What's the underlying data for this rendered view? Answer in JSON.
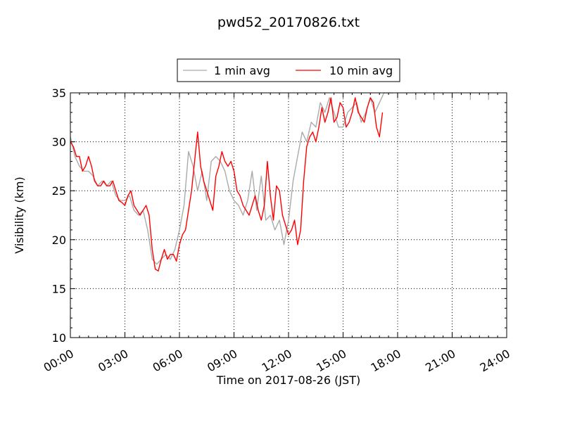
{
  "chart_data": {
    "type": "line",
    "title": "pwd52_20170826.txt",
    "xlabel": "Time on 2017-08-26 (JST)",
    "ylabel": "Visibility (km)",
    "xlim": [
      "00:00",
      "24:00"
    ],
    "ylim": [
      10,
      35
    ],
    "x_ticks": [
      "00:00",
      "03:00",
      "06:00",
      "09:00",
      "12:00",
      "15:00",
      "18:00",
      "21:00",
      "24:00"
    ],
    "y_ticks": [
      "10",
      "15",
      "20",
      "25",
      "30",
      "35"
    ],
    "grid": true,
    "legend_position": "top-center",
    "series": [
      {
        "name": "1 min avg",
        "color": "#aaaaaa",
        "points": [
          [
            "00:00",
            30.5
          ],
          [
            "00:15",
            28.5
          ],
          [
            "00:30",
            27.5
          ],
          [
            "00:45",
            27.0
          ],
          [
            "01:00",
            27.0
          ],
          [
            "01:15",
            26.5
          ],
          [
            "01:30",
            25.5
          ],
          [
            "01:45",
            26.0
          ],
          [
            "02:00",
            25.5
          ],
          [
            "02:15",
            26.0
          ],
          [
            "02:30",
            24.5
          ],
          [
            "02:45",
            24.0
          ],
          [
            "03:00",
            24.0
          ],
          [
            "03:15",
            24.5
          ],
          [
            "03:30",
            23.0
          ],
          [
            "03:45",
            22.5
          ],
          [
            "04:00",
            23.0
          ],
          [
            "04:15",
            21.0
          ],
          [
            "04:30",
            18.0
          ],
          [
            "04:45",
            17.5
          ],
          [
            "05:00",
            18.0
          ],
          [
            "05:15",
            18.5
          ],
          [
            "05:30",
            18.0
          ],
          [
            "05:45",
            19.0
          ],
          [
            "06:00",
            21.0
          ],
          [
            "06:15",
            23.5
          ],
          [
            "06:30",
            29.0
          ],
          [
            "06:45",
            27.5
          ],
          [
            "07:00",
            25.0
          ],
          [
            "07:15",
            27.0
          ],
          [
            "07:30",
            24.0
          ],
          [
            "07:45",
            28.0
          ],
          [
            "08:00",
            28.5
          ],
          [
            "08:15",
            28.0
          ],
          [
            "08:30",
            27.0
          ],
          [
            "08:45",
            25.0
          ],
          [
            "09:00",
            24.0
          ],
          [
            "09:15",
            23.5
          ],
          [
            "09:30",
            22.5
          ],
          [
            "09:45",
            24.0
          ],
          [
            "10:00",
            27.0
          ],
          [
            "10:15",
            23.0
          ],
          [
            "10:30",
            26.5
          ],
          [
            "10:45",
            22.0
          ],
          [
            "11:00",
            22.5
          ],
          [
            "11:15",
            21.0
          ],
          [
            "11:30",
            22.0
          ],
          [
            "11:45",
            19.5
          ],
          [
            "12:00",
            22.0
          ],
          [
            "12:15",
            26.0
          ],
          [
            "12:30",
            28.5
          ],
          [
            "12:45",
            31.0
          ],
          [
            "13:00",
            30.0
          ],
          [
            "13:15",
            32.0
          ],
          [
            "13:30",
            31.5
          ],
          [
            "13:45",
            34.0
          ],
          [
            "14:00",
            33.0
          ],
          [
            "14:15",
            34.5
          ],
          [
            "14:30",
            33.0
          ],
          [
            "14:45",
            31.5
          ],
          [
            "15:00",
            31.5
          ],
          [
            "15:15",
            33.0
          ],
          [
            "15:30",
            33.5
          ],
          [
            "15:45",
            34.0
          ],
          [
            "16:00",
            32.0
          ],
          [
            "16:15",
            33.0
          ],
          [
            "16:30",
            34.5
          ],
          [
            "16:45",
            33.0
          ],
          [
            "17:00",
            34.0
          ],
          [
            "17:15",
            35.0
          ],
          [
            "17:30",
            35.0
          ],
          [
            "17:45",
            35.0
          ]
        ]
      },
      {
        "name": "10 min avg",
        "color": "#ff0000",
        "points": [
          [
            "00:00",
            30.0
          ],
          [
            "00:10",
            29.5
          ],
          [
            "00:20",
            28.5
          ],
          [
            "00:30",
            28.5
          ],
          [
            "00:40",
            27.0
          ],
          [
            "00:50",
            27.5
          ],
          [
            "01:00",
            28.5
          ],
          [
            "01:10",
            27.5
          ],
          [
            "01:20",
            26.0
          ],
          [
            "01:30",
            25.5
          ],
          [
            "01:40",
            25.5
          ],
          [
            "01:50",
            26.0
          ],
          [
            "02:00",
            25.5
          ],
          [
            "02:10",
            25.5
          ],
          [
            "02:20",
            26.0
          ],
          [
            "02:30",
            25.0
          ],
          [
            "02:40",
            24.0
          ],
          [
            "02:50",
            23.8
          ],
          [
            "03:00",
            23.5
          ],
          [
            "03:10",
            24.5
          ],
          [
            "03:20",
            25.0
          ],
          [
            "03:30",
            23.5
          ],
          [
            "03:40",
            23.0
          ],
          [
            "03:50",
            22.5
          ],
          [
            "04:00",
            23.0
          ],
          [
            "04:10",
            23.5
          ],
          [
            "04:20",
            22.5
          ],
          [
            "04:30",
            19.0
          ],
          [
            "04:40",
            17.0
          ],
          [
            "04:50",
            16.8
          ],
          [
            "05:00",
            18.0
          ],
          [
            "05:10",
            19.0
          ],
          [
            "05:20",
            18.0
          ],
          [
            "05:30",
            18.5
          ],
          [
            "05:40",
            18.5
          ],
          [
            "05:50",
            17.8
          ],
          [
            "06:00",
            19.5
          ],
          [
            "06:10",
            20.5
          ],
          [
            "06:20",
            21.0
          ],
          [
            "06:30",
            23.0
          ],
          [
            "06:40",
            25.0
          ],
          [
            "06:50",
            28.0
          ],
          [
            "07:00",
            31.0
          ],
          [
            "07:10",
            27.5
          ],
          [
            "07:20",
            26.0
          ],
          [
            "07:30",
            25.0
          ],
          [
            "07:40",
            24.0
          ],
          [
            "07:50",
            23.0
          ],
          [
            "08:00",
            26.5
          ],
          [
            "08:10",
            27.5
          ],
          [
            "08:20",
            29.0
          ],
          [
            "08:30",
            28.0
          ],
          [
            "08:40",
            27.5
          ],
          [
            "08:50",
            28.0
          ],
          [
            "09:00",
            27.0
          ],
          [
            "09:10",
            25.0
          ],
          [
            "09:20",
            24.5
          ],
          [
            "09:30",
            23.5
          ],
          [
            "09:40",
            23.0
          ],
          [
            "09:50",
            22.5
          ],
          [
            "10:00",
            23.5
          ],
          [
            "10:10",
            24.5
          ],
          [
            "10:20",
            23.0
          ],
          [
            "10:30",
            22.0
          ],
          [
            "10:40",
            23.5
          ],
          [
            "10:50",
            28.0
          ],
          [
            "11:00",
            24.5
          ],
          [
            "11:10",
            22.0
          ],
          [
            "11:20",
            25.5
          ],
          [
            "11:30",
            25.0
          ],
          [
            "11:40",
            22.5
          ],
          [
            "11:50",
            21.5
          ],
          [
            "12:00",
            20.5
          ],
          [
            "12:10",
            21.0
          ],
          [
            "12:20",
            22.0
          ],
          [
            "12:30",
            19.5
          ],
          [
            "12:40",
            21.0
          ],
          [
            "12:50",
            26.0
          ],
          [
            "13:00",
            29.5
          ],
          [
            "13:10",
            30.5
          ],
          [
            "13:20",
            31.0
          ],
          [
            "13:30",
            30.0
          ],
          [
            "13:40",
            31.5
          ],
          [
            "13:50",
            33.5
          ],
          [
            "14:00",
            32.0
          ],
          [
            "14:10",
            33.0
          ],
          [
            "14:20",
            34.5
          ],
          [
            "14:30",
            32.0
          ],
          [
            "14:40",
            32.5
          ],
          [
            "14:50",
            34.0
          ],
          [
            "15:00",
            33.5
          ],
          [
            "15:10",
            31.5
          ],
          [
            "15:20",
            32.0
          ],
          [
            "15:30",
            33.0
          ],
          [
            "15:40",
            34.5
          ],
          [
            "15:50",
            33.0
          ],
          [
            "16:00",
            32.5
          ],
          [
            "16:10",
            32.0
          ],
          [
            "16:20",
            33.5
          ],
          [
            "16:30",
            34.5
          ],
          [
            "16:40",
            34.0
          ],
          [
            "16:50",
            31.5
          ],
          [
            "17:00",
            30.5
          ],
          [
            "17:10",
            33.0
          ]
        ]
      },
      {
        "name": "",
        "color": "#aaaaaa",
        "points": [
          [
            "18:00",
            35.0
          ],
          [
            "19:00",
            35.0
          ],
          [
            "20:00",
            35.0
          ],
          [
            "21:00",
            35.0
          ],
          [
            "22:00",
            35.0
          ],
          [
            "23:00",
            35.0
          ]
        ]
      }
    ]
  }
}
